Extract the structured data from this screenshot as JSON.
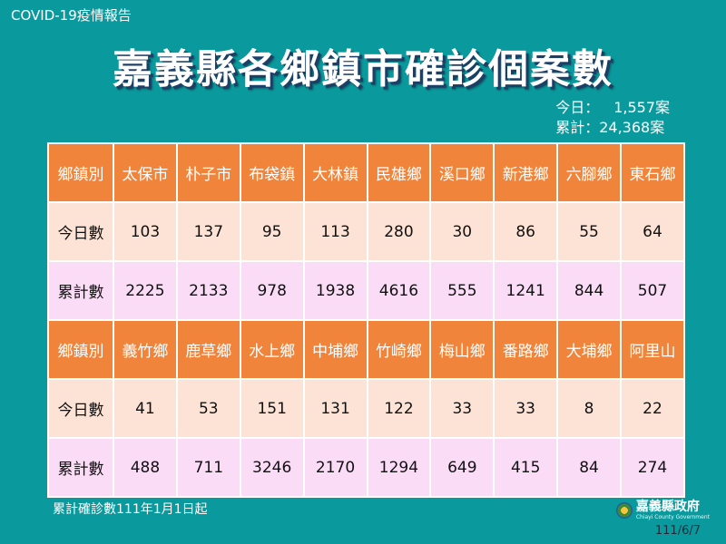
{
  "header_tag": "COVID-19疫情報告",
  "title": "嘉義縣各鄉鎮市確診個案數",
  "summary": {
    "today_label": "今日：",
    "today_value": "1,557案",
    "total_label": "累計：",
    "total_value": "24,368案"
  },
  "table": {
    "header_label": "鄉鎮別",
    "today_label": "今日數",
    "total_label": "累計數",
    "blocks": [
      {
        "towns": [
          "太保市",
          "朴子市",
          "布袋鎮",
          "大林鎮",
          "民雄鄉",
          "溪口鄉",
          "新港鄉",
          "六腳鄉",
          "東石鄉"
        ],
        "today": [
          "103",
          "137",
          "95",
          "113",
          "280",
          "30",
          "86",
          "55",
          "64"
        ],
        "total": [
          "2225",
          "2133",
          "978",
          "1938",
          "4616",
          "555",
          "1241",
          "844",
          "507"
        ]
      },
      {
        "towns": [
          "義竹鄉",
          "鹿草鄉",
          "水上鄉",
          "中埔鄉",
          "竹崎鄉",
          "梅山鄉",
          "番路鄉",
          "大埔鄉",
          "阿里山"
        ],
        "today": [
          "41",
          "53",
          "151",
          "131",
          "122",
          "33",
          "33",
          "8",
          "22"
        ],
        "total": [
          "488",
          "711",
          "3246",
          "2170",
          "1294",
          "649",
          "415",
          "84",
          "274"
        ]
      }
    ]
  },
  "footnote": "累計確診數111年1月1日起",
  "logo": {
    "name": "嘉義縣政府",
    "english": "Chiayi County Government"
  },
  "date": "111/6/7",
  "colors": {
    "background": "#0a9a9e",
    "header_cell": "#f0843a",
    "today_row": "#fde3d6",
    "total_row": "#fbdcf7"
  }
}
